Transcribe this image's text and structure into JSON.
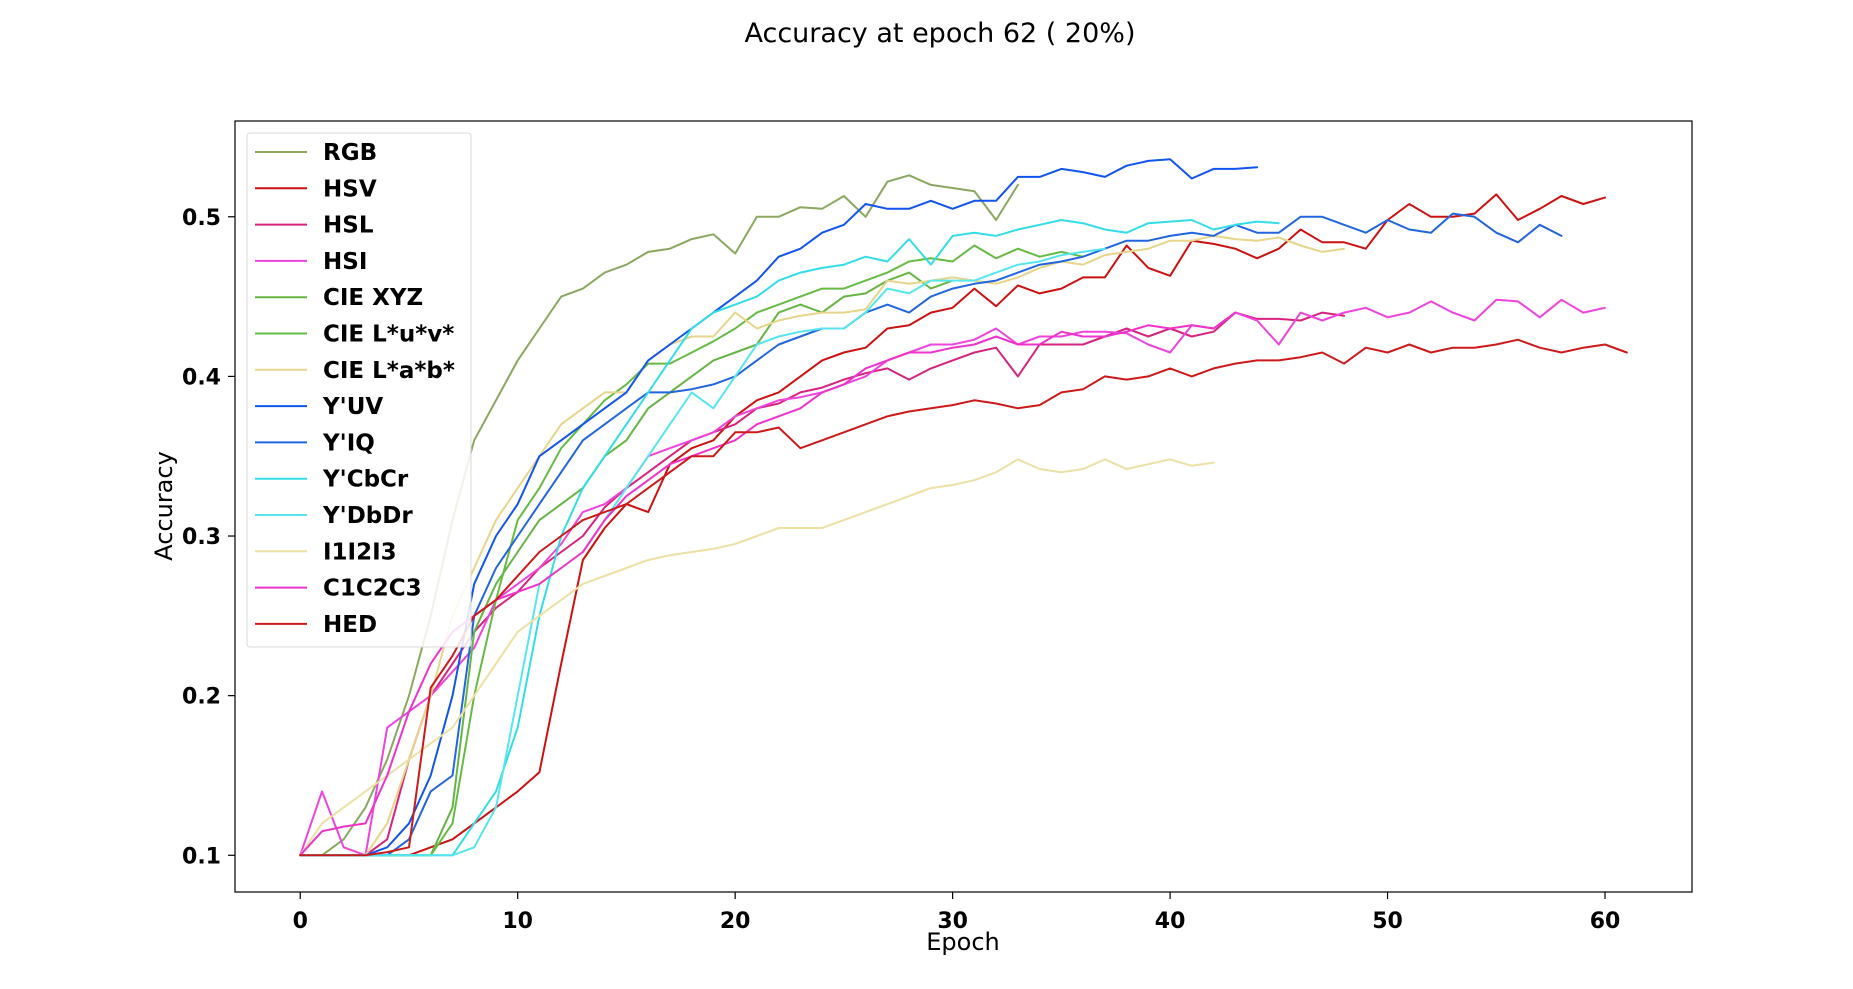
{
  "chart_data": {
    "type": "line",
    "title": "Accuracy at epoch 62 ( 20%)",
    "xlabel": "Epoch",
    "ylabel": "Accuracy",
    "xlim": [
      -3,
      64
    ],
    "ylim": [
      0.077,
      0.56
    ],
    "xticks": [
      "0",
      "10",
      "20",
      "30",
      "40",
      "50",
      "60"
    ],
    "yticks": [
      "0.1",
      "0.2",
      "0.3",
      "0.4",
      "0.5"
    ],
    "legend_position": "upper-left",
    "grid": false,
    "series": [
      {
        "name": "RGB",
        "color": "#8aa860",
        "values": [
          0.1,
          0.1,
          0.11,
          0.13,
          0.16,
          0.2,
          0.25,
          0.31,
          0.36,
          0.385,
          0.41,
          0.43,
          0.45,
          0.455,
          0.465,
          0.47,
          0.478,
          0.48,
          0.486,
          0.489,
          0.477,
          0.5,
          0.5,
          0.506,
          0.505,
          0.513,
          0.5,
          0.522,
          0.526,
          0.52,
          0.518,
          0.516,
          0.498,
          0.52
        ]
      },
      {
        "name": "HSV",
        "color": "#cc1111",
        "values": [
          0.1,
          0.1,
          0.1,
          0.1,
          0.1,
          0.1,
          0.105,
          0.11,
          0.12,
          0.13,
          0.14,
          0.152,
          0.22,
          0.285,
          0.305,
          0.32,
          0.315,
          0.345,
          0.355,
          0.36,
          0.375,
          0.385,
          0.39,
          0.4,
          0.41,
          0.415,
          0.418,
          0.43,
          0.432,
          0.44,
          0.443,
          0.455,
          0.444,
          0.457,
          0.452,
          0.455,
          0.462,
          0.462,
          0.482,
          0.468,
          0.463,
          0.485,
          0.483,
          0.48,
          0.474,
          0.48,
          0.492,
          0.484,
          0.484,
          0.48,
          0.498,
          0.508,
          0.5,
          0.5,
          0.502,
          0.514,
          0.498,
          0.505,
          0.513,
          0.508,
          0.512
        ]
      },
      {
        "name": "HSL",
        "color": "#d6237e",
        "values": [
          0.1,
          0.1,
          0.1,
          0.1,
          0.11,
          0.16,
          0.2,
          0.22,
          0.24,
          0.255,
          0.265,
          0.28,
          0.29,
          0.3,
          0.318,
          0.33,
          0.34,
          0.35,
          0.36,
          0.365,
          0.37,
          0.38,
          0.383,
          0.39,
          0.393,
          0.398,
          0.402,
          0.405,
          0.398,
          0.405,
          0.41,
          0.415,
          0.418,
          0.4,
          0.42,
          0.42,
          0.42,
          0.425,
          0.43,
          0.425,
          0.43,
          0.425,
          0.428,
          0.44,
          0.436,
          0.436,
          0.435,
          0.44,
          0.438
        ]
      },
      {
        "name": "HSI",
        "color": "#ee44dd",
        "values": [
          0.1,
          0.14,
          0.105,
          0.1,
          0.18,
          0.19,
          0.2,
          0.215,
          0.23,
          0.26,
          0.27,
          0.28,
          0.295,
          0.315,
          0.32,
          0.33,
          0.35,
          0.355,
          0.36,
          0.365,
          0.375,
          0.38,
          0.385,
          0.387,
          0.39,
          0.395,
          0.4,
          0.41,
          0.415,
          0.42,
          0.42,
          0.423,
          0.43,
          0.42,
          0.425,
          0.425,
          0.428,
          0.428,
          0.427,
          0.42,
          0.415,
          0.432,
          0.43,
          0.44,
          0.435,
          0.42,
          0.44,
          0.435,
          0.44,
          0.443,
          0.437,
          0.44,
          0.447,
          0.44,
          0.435,
          0.448,
          0.447,
          0.437,
          0.448,
          0.44,
          0.443
        ]
      },
      {
        "name": "CIE XYZ",
        "color": "#66b544",
        "values": [
          0.1,
          0.1,
          0.1,
          0.1,
          0.1,
          0.1,
          0.1,
          0.13,
          0.24,
          0.27,
          0.29,
          0.31,
          0.32,
          0.33,
          0.35,
          0.36,
          0.38,
          0.39,
          0.4,
          0.41,
          0.415,
          0.42,
          0.44,
          0.445,
          0.44,
          0.45,
          0.452,
          0.46,
          0.465,
          0.455,
          0.46
        ]
      },
      {
        "name": "CIE L*u*v*",
        "color": "#66bb44",
        "values": [
          0.1,
          0.1,
          0.1,
          0.1,
          0.1,
          0.1,
          0.1,
          0.12,
          0.2,
          0.26,
          0.31,
          0.33,
          0.355,
          0.37,
          0.385,
          0.395,
          0.408,
          0.408,
          0.415,
          0.422,
          0.43,
          0.44,
          0.445,
          0.45,
          0.455,
          0.455,
          0.46,
          0.465,
          0.472,
          0.474,
          0.472,
          0.482,
          0.474,
          0.48,
          0.475,
          0.478,
          0.475
        ]
      },
      {
        "name": "CIE L*a*b*",
        "color": "#e6d58a",
        "values": [
          0.1,
          0.1,
          0.1,
          0.1,
          0.12,
          0.16,
          0.2,
          0.25,
          0.28,
          0.31,
          0.33,
          0.35,
          0.37,
          0.38,
          0.39,
          0.39,
          0.41,
          0.42,
          0.425,
          0.425,
          0.44,
          0.43,
          0.435,
          0.438,
          0.44,
          0.44,
          0.442,
          0.46,
          0.458,
          0.46,
          0.462,
          0.46,
          0.458,
          0.462,
          0.468,
          0.472,
          0.47,
          0.476,
          0.478,
          0.48,
          0.485,
          0.485,
          0.488,
          0.486,
          0.485,
          0.487,
          0.482,
          0.478,
          0.48
        ]
      },
      {
        "name": "Y'UV",
        "color": "#1155ee",
        "values": [
          0.1,
          0.1,
          0.1,
          0.1,
          0.105,
          0.12,
          0.15,
          0.2,
          0.27,
          0.3,
          0.32,
          0.35,
          0.36,
          0.37,
          0.38,
          0.39,
          0.41,
          0.42,
          0.43,
          0.44,
          0.45,
          0.46,
          0.475,
          0.48,
          0.49,
          0.495,
          0.508,
          0.505,
          0.505,
          0.51,
          0.505,
          0.51,
          0.51,
          0.525,
          0.525,
          0.53,
          0.528,
          0.525,
          0.532,
          0.535,
          0.536,
          0.524,
          0.53,
          0.53,
          0.531
        ]
      },
      {
        "name": "Y'IQ",
        "color": "#2266dd",
        "values": [
          0.1,
          0.1,
          0.1,
          0.1,
          0.1,
          0.11,
          0.14,
          0.15,
          0.25,
          0.28,
          0.3,
          0.32,
          0.34,
          0.36,
          0.37,
          0.38,
          0.39,
          0.39,
          0.392,
          0.395,
          0.4,
          0.41,
          0.42,
          0.425,
          0.43,
          0.43,
          0.44,
          0.445,
          0.44,
          0.45,
          0.455,
          0.458,
          0.46,
          0.465,
          0.47,
          0.472,
          0.475,
          0.48,
          0.485,
          0.485,
          0.488,
          0.49,
          0.488,
          0.495,
          0.49,
          0.49,
          0.5,
          0.5,
          0.495,
          0.49,
          0.498,
          0.492,
          0.49,
          0.502,
          0.5,
          0.49,
          0.484,
          0.495,
          0.488
        ]
      },
      {
        "name": "Y'CbCr",
        "color": "#33dde8",
        "values": [
          0.1,
          0.1,
          0.1,
          0.1,
          0.1,
          0.1,
          0.1,
          0.1,
          0.12,
          0.14,
          0.18,
          0.25,
          0.3,
          0.33,
          0.35,
          0.37,
          0.39,
          0.41,
          0.43,
          0.44,
          0.445,
          0.45,
          0.46,
          0.465,
          0.468,
          0.47,
          0.475,
          0.472,
          0.486,
          0.47,
          0.488,
          0.49,
          0.488,
          0.492,
          0.495,
          0.498,
          0.496,
          0.492,
          0.49,
          0.496,
          0.497,
          0.498,
          0.492,
          0.495,
          0.497,
          0.496
        ]
      },
      {
        "name": "Y'DbDr",
        "color": "#55e6f0",
        "values": [
          0.1,
          0.1,
          0.1,
          0.1,
          0.1,
          0.1,
          0.1,
          0.1,
          0.105,
          0.13,
          0.2,
          0.27,
          0.28,
          0.29,
          0.31,
          0.33,
          0.35,
          0.37,
          0.39,
          0.38,
          0.4,
          0.42,
          0.425,
          0.428,
          0.43,
          0.43,
          0.44,
          0.455,
          0.452,
          0.46,
          0.46,
          0.46,
          0.465,
          0.47,
          0.472,
          0.476,
          0.478,
          0.48
        ]
      },
      {
        "name": "I1I2I3",
        "color": "#ece0a4",
        "values": [
          0.1,
          0.12,
          0.13,
          0.14,
          0.15,
          0.16,
          0.17,
          0.18,
          0.2,
          0.22,
          0.24,
          0.25,
          0.26,
          0.27,
          0.275,
          0.28,
          0.285,
          0.288,
          0.29,
          0.292,
          0.295,
          0.3,
          0.305,
          0.305,
          0.305,
          0.31,
          0.315,
          0.32,
          0.325,
          0.33,
          0.332,
          0.335,
          0.34,
          0.348,
          0.342,
          0.34,
          0.342,
          0.348,
          0.342,
          0.345,
          0.348,
          0.344,
          0.346
        ]
      },
      {
        "name": "C1C2C3",
        "color": "#ee33cc",
        "values": [
          0.1,
          0.115,
          0.118,
          0.12,
          0.15,
          0.19,
          0.22,
          0.24,
          0.25,
          0.26,
          0.265,
          0.27,
          0.28,
          0.29,
          0.31,
          0.325,
          0.335,
          0.345,
          0.35,
          0.355,
          0.36,
          0.37,
          0.375,
          0.38,
          0.39,
          0.395,
          0.405,
          0.41,
          0.415,
          0.415,
          0.418,
          0.42,
          0.425,
          0.42,
          0.42,
          0.428,
          0.425,
          0.425,
          0.428,
          0.432,
          0.43,
          0.432,
          0.43,
          0.44
        ]
      },
      {
        "name": "HED",
        "color": "#cc1a1a",
        "values": [
          0.1,
          0.1,
          0.1,
          0.1,
          0.102,
          0.105,
          0.205,
          0.225,
          0.25,
          0.26,
          0.275,
          0.29,
          0.3,
          0.31,
          0.315,
          0.32,
          0.33,
          0.34,
          0.35,
          0.35,
          0.365,
          0.365,
          0.368,
          0.355,
          0.36,
          0.365,
          0.37,
          0.375,
          0.378,
          0.38,
          0.382,
          0.385,
          0.383,
          0.38,
          0.382,
          0.39,
          0.392,
          0.4,
          0.398,
          0.4,
          0.405,
          0.4,
          0.405,
          0.408,
          0.41,
          0.41,
          0.412,
          0.415,
          0.408,
          0.418,
          0.415,
          0.42,
          0.415,
          0.418,
          0.418,
          0.42,
          0.423,
          0.418,
          0.415,
          0.418,
          0.42,
          0.415
        ]
      }
    ]
  }
}
